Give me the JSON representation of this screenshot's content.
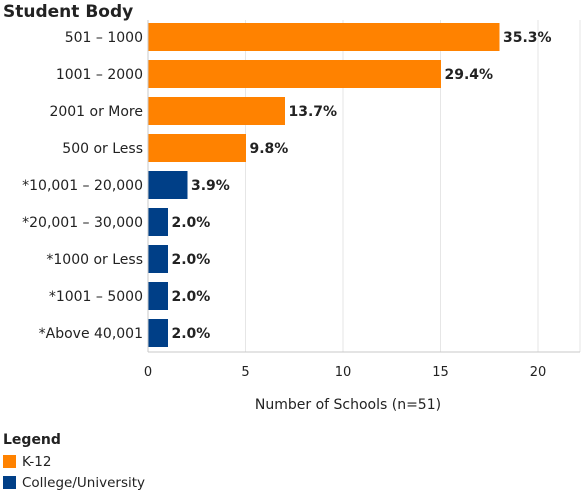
{
  "chart_data": {
    "type": "bar",
    "orientation": "horizontal",
    "ylabel": "Student Body",
    "xlabel": "Number of Schools (n=51)",
    "xlim": [
      0,
      22
    ],
    "xticks": [
      0,
      5,
      10,
      15,
      20
    ],
    "grid": true,
    "categories": [
      "501 – 1000",
      "1001 – 2000",
      "2001 or More",
      "500 or Less",
      "*10,001 – 20,000",
      "*20,001 – 30,000",
      "*1000 or Less",
      "*1001 – 5000",
      "*Above 40,001"
    ],
    "values": [
      18,
      15,
      7,
      5,
      2,
      1,
      1,
      1,
      1
    ],
    "data_labels": [
      "35.3%",
      "29.4%",
      "13.7%",
      "9.8%",
      "3.9%",
      "2.0%",
      "2.0%",
      "2.0%",
      "2.0%"
    ],
    "groups": [
      "K-12",
      "K-12",
      "K-12",
      "K-12",
      "College/University",
      "College/University",
      "College/University",
      "College/University",
      "College/University"
    ],
    "colors": {
      "K-12": "#FF8200",
      "College/University": "#003F87"
    },
    "legend": {
      "title": "Legend",
      "placement": "bottom-left",
      "entries": [
        "K-12",
        "College/University"
      ]
    }
  }
}
